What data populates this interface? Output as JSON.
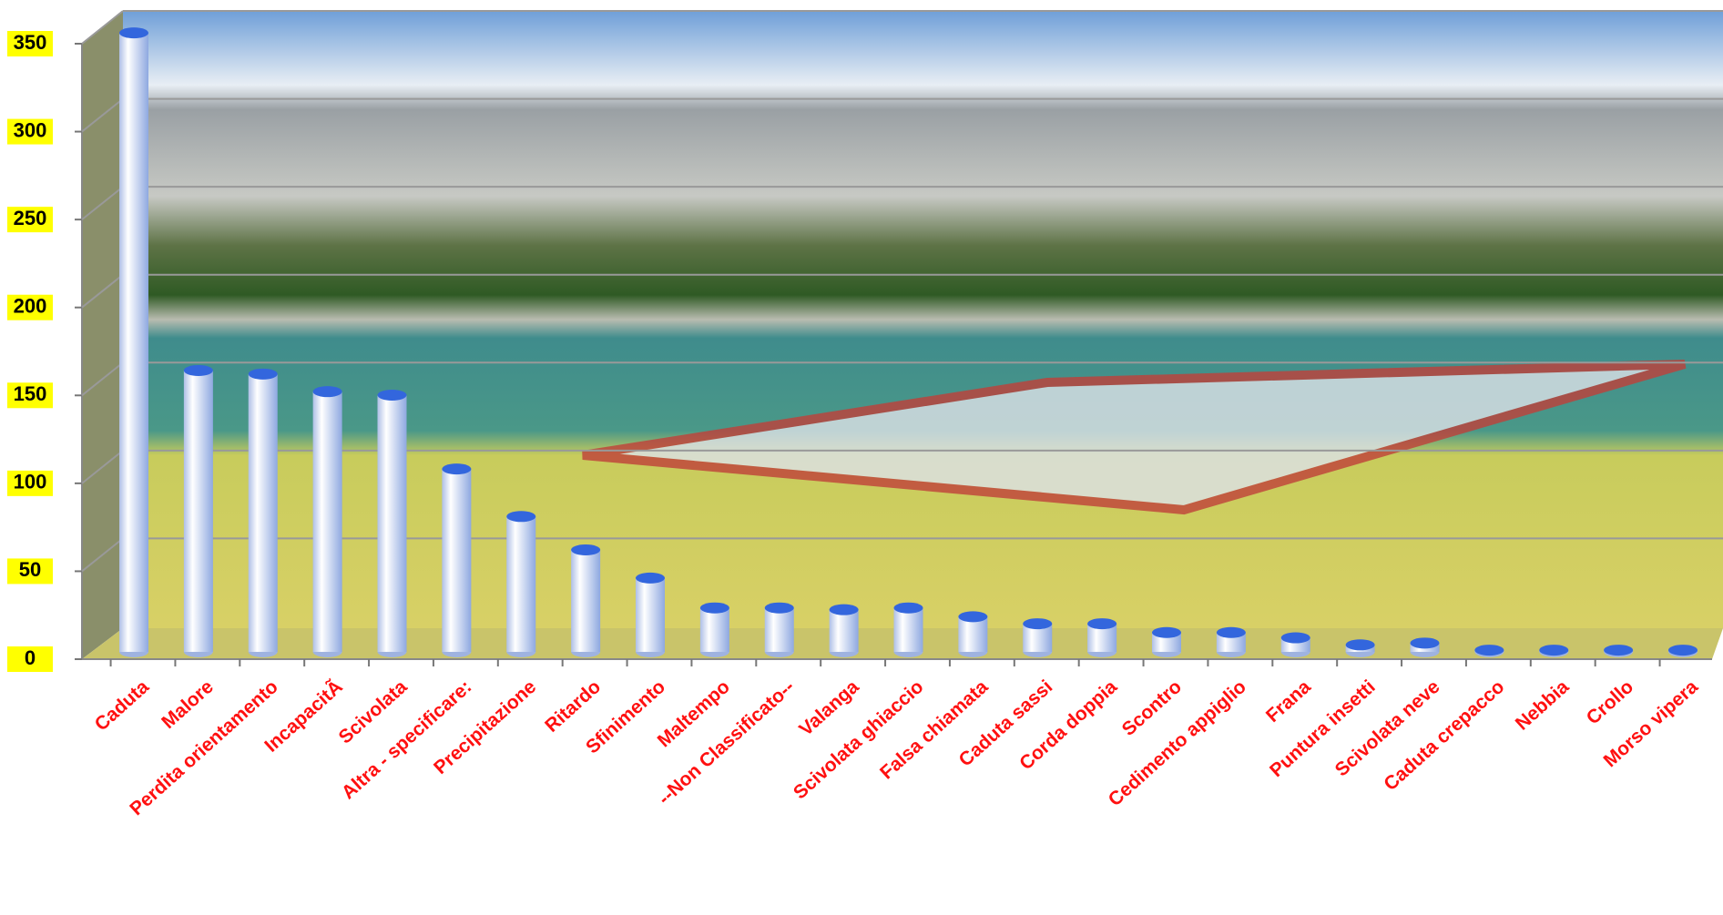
{
  "chart_data": {
    "type": "bar",
    "categories": [
      "Caduta",
      "Malore",
      "Perdita orientamento",
      "IncapacitÃ",
      "Scivolata",
      "Altra - specificare:",
      "Precipitazione",
      "Ritardo",
      "Sfinimento",
      "Maltempo",
      "--Non Classificato--",
      "Valanga",
      "Scivolata ghiaccio",
      "Falsa chiamata",
      "Caduta sassi",
      "Corda doppia",
      "Scontro",
      "Cedimento appiglio",
      "Frana",
      "Puntura insetti",
      "Scivolata neve",
      "Caduta crepacco",
      "Nebbia",
      "Crollo",
      "Morso vipera"
    ],
    "values": [
      352,
      160,
      158,
      148,
      146,
      104,
      77,
      58,
      42,
      25,
      25,
      24,
      25,
      20,
      16,
      16,
      11,
      11,
      8,
      4,
      5,
      1,
      1,
      1,
      1
    ],
    "color": "#3366dd",
    "ylim": [
      0,
      350
    ],
    "yticks": [
      0,
      50,
      100,
      150,
      200,
      250,
      300,
      350
    ],
    "grid": true
  }
}
